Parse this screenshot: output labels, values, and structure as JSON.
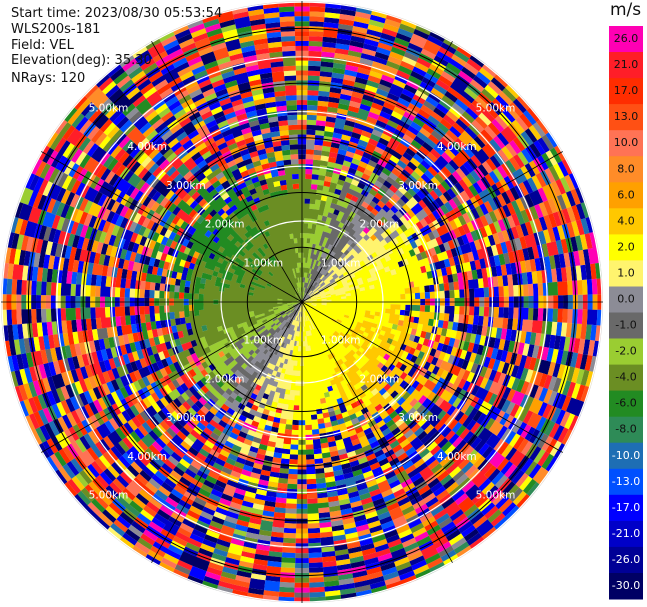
{
  "header": {
    "start_time": "Start time: 2023/08/30 05:53:54",
    "instrument": "WLS200s-181",
    "field": "Field: VEL",
    "elevation": "Elevation(deg): 35.30",
    "nrays": "NRays: 120"
  },
  "chart_data": {
    "type": "heatmap",
    "projection": "polar (PPI scan)",
    "field": "VEL",
    "units": "m/s",
    "n_rays": 120,
    "elevation_deg": 35.3,
    "range_km": [
      0,
      5.5
    ],
    "range_rings_km": [
      1,
      2,
      3,
      4,
      5
    ],
    "ring_labels": [
      "1.00km",
      "2.00km",
      "3.00km",
      "4.00km",
      "5.00km"
    ],
    "colorbar": {
      "ticks": [
        "26.0",
        "21.0",
        "17.0",
        "13.0",
        "10.0",
        "8.0",
        "6.0",
        "4.0",
        "2.0",
        "1.0",
        "0.0",
        "-1.0",
        "-2.0",
        "-4.0",
        "-6.0",
        "-8.0",
        "-10.0",
        "-13.0",
        "-17.0",
        "-21.0",
        "-26.0",
        "-30.0"
      ],
      "colors": [
        "#ff00b4",
        "#ff1e28",
        "#ff2d00",
        "#ff5014",
        "#ff7355",
        "#ff8c28",
        "#ffa000",
        "#ffc800",
        "#ffff00",
        "#fff46e",
        "#8c8c96",
        "#696969",
        "#9acd32",
        "#6b8e23",
        "#228b22",
        "#2e8b57",
        "#1e6eb4",
        "#0050ff",
        "#0000ff",
        "#0000c8",
        "#000096",
        "#000064"
      ]
    }
  }
}
